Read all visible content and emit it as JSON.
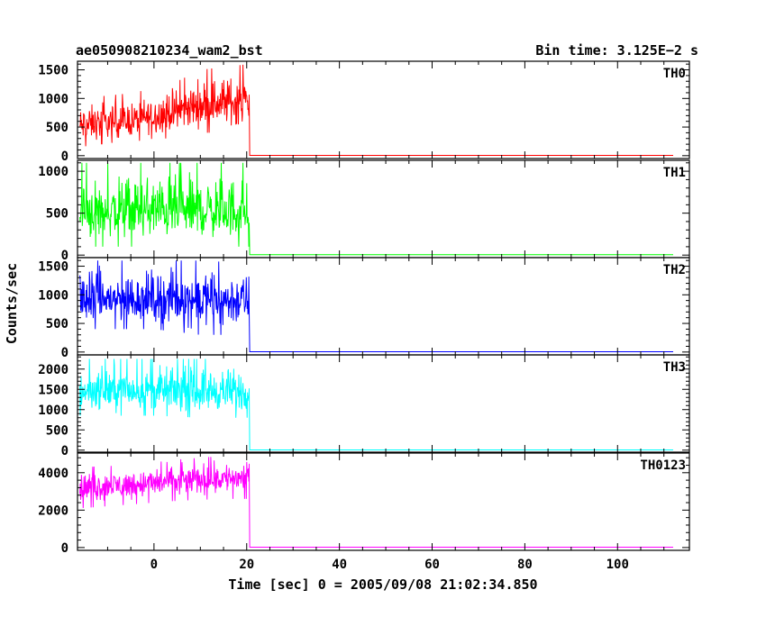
{
  "header": {
    "title": "ae050908210234_wam2_bst",
    "bin_time": "Bin time: 3.125E−2 s"
  },
  "axes": {
    "xlabel": "Time [sec] 0 = 2005/09/08 21:02:34.850",
    "ylabel": "Counts/sec"
  },
  "chart_data": {
    "type": "line",
    "title": "ae050908210234_wam2_bst",
    "subtitle": "Bin time: 3.125E−2 s",
    "xlabel": "Time [sec] 0 = 2005/09/08 21:02:34.850",
    "ylabel": "Counts/sec",
    "xlim": [
      -16.5,
      115.5
    ],
    "xticks": [
      0,
      20,
      40,
      60,
      80,
      100
    ],
    "x_tick_labels": [
      "0",
      "20",
      "40",
      "60",
      "80",
      "100"
    ],
    "grid": false,
    "data_span": {
      "x_start": -16,
      "burst_end": 20.6,
      "x_end": 112
    },
    "panels": [
      {
        "name": "TH0",
        "color": "#ff0000",
        "ylim": [
          -50,
          1650
        ],
        "yticks": [
          0,
          500,
          1000,
          1500
        ],
        "y_tick_labels": [
          "0",
          "500",
          "1000",
          "1500"
        ],
        "burst_profile": [
          {
            "x": -16,
            "mean": 500,
            "min": 150,
            "max": 1000
          },
          {
            "x": -10,
            "mean": 560,
            "min": 220,
            "max": 1050
          },
          {
            "x": -4,
            "mean": 600,
            "min": 250,
            "max": 1100
          },
          {
            "x": 0,
            "mean": 680,
            "min": 300,
            "max": 1200
          },
          {
            "x": 5,
            "mean": 780,
            "min": 300,
            "max": 1300
          },
          {
            "x": 10,
            "mean": 870,
            "min": 400,
            "max": 1500
          },
          {
            "x": 15,
            "mean": 920,
            "min": 400,
            "max": 1550
          },
          {
            "x": 20.5,
            "mean": 950,
            "min": 400,
            "max": 1600
          }
        ],
        "quiescent_level": 5
      },
      {
        "name": "TH1",
        "color": "#00ff00",
        "ylim": [
          -30,
          1130
        ],
        "yticks": [
          0,
          500,
          1000
        ],
        "y_tick_labels": [
          "0",
          "500",
          "1000"
        ],
        "burst_profile": [
          {
            "x": -16,
            "mean": 500,
            "min": 100,
            "max": 1100
          },
          {
            "x": 0,
            "mean": 520,
            "min": 100,
            "max": 1100
          },
          {
            "x": 10,
            "mean": 520,
            "min": 100,
            "max": 1100
          },
          {
            "x": 20.5,
            "mean": 500,
            "min": 100,
            "max": 1100
          }
        ],
        "quiescent_level": 5
      },
      {
        "name": "TH2",
        "color": "#0000ff",
        "ylim": [
          -50,
          1650
        ],
        "yticks": [
          0,
          500,
          1000,
          1500
        ],
        "y_tick_labels": [
          "0",
          "500",
          "1000",
          "1500"
        ],
        "burst_profile": [
          {
            "x": -16,
            "mean": 900,
            "min": 400,
            "max": 1600
          },
          {
            "x": 0,
            "mean": 920,
            "min": 400,
            "max": 1600
          },
          {
            "x": 10,
            "mean": 900,
            "min": 300,
            "max": 1600
          },
          {
            "x": 20.5,
            "mean": 880,
            "min": 300,
            "max": 1550
          }
        ],
        "quiescent_level": 5
      },
      {
        "name": "TH3",
        "color": "#00ffff",
        "ylim": [
          -50,
          2350
        ],
        "yticks": [
          0,
          500,
          1000,
          1500,
          2000
        ],
        "y_tick_labels": [
          "0",
          "500",
          "1000",
          "1500",
          "2000"
        ],
        "burst_profile": [
          {
            "x": -16,
            "mean": 1450,
            "min": 850,
            "max": 2250
          },
          {
            "x": 0,
            "mean": 1450,
            "min": 850,
            "max": 2250
          },
          {
            "x": 10,
            "mean": 1450,
            "min": 800,
            "max": 2250
          },
          {
            "x": 20.5,
            "mean": 1400,
            "min": 800,
            "max": 2250
          }
        ],
        "quiescent_level": 5
      },
      {
        "name": "TH0123",
        "color": "#ff00ff",
        "ylim": [
          -150,
          5050
        ],
        "yticks": [
          0,
          2000,
          4000
        ],
        "y_tick_labels": [
          "0",
          "2000",
          "4000"
        ],
        "burst_profile": [
          {
            "x": -16,
            "mean": 3200,
            "min": 2100,
            "max": 4300
          },
          {
            "x": -5,
            "mean": 3350,
            "min": 2300,
            "max": 4400
          },
          {
            "x": 5,
            "mean": 3550,
            "min": 2500,
            "max": 4700
          },
          {
            "x": 15,
            "mean": 3700,
            "min": 2600,
            "max": 4900
          },
          {
            "x": 20.5,
            "mean": 3750,
            "min": 2600,
            "max": 5000
          }
        ],
        "quiescent_level": 20
      }
    ]
  }
}
